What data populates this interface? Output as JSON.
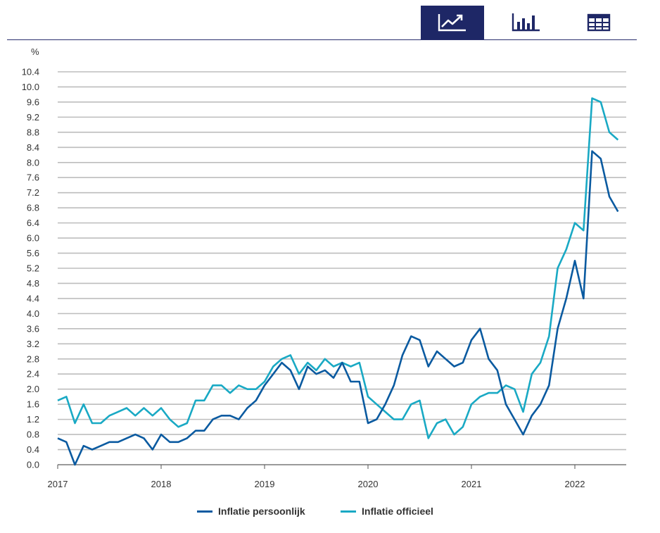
{
  "toolbar": {
    "buttons": [
      {
        "icon": "line-chart-icon",
        "active": true
      },
      {
        "icon": "bar-chart-icon",
        "active": false
      },
      {
        "icon": "table-icon",
        "active": false
      }
    ]
  },
  "colors": {
    "persoonlijk": "#0a5aa0",
    "officieel": "#19a9c4",
    "grid": "#bdbdbd",
    "toolbar_active": "#1e2766"
  },
  "chart_data": {
    "type": "line",
    "ylabel": "%",
    "xlabel": "",
    "ylim": [
      0,
      10.4
    ],
    "ytick_step": 0.4,
    "yticks": [
      "0.0",
      "0.4",
      "0.8",
      "1.2",
      "1.6",
      "2.0",
      "2.4",
      "2.8",
      "3.2",
      "3.6",
      "4.0",
      "4.4",
      "4.8",
      "5.2",
      "5.6",
      "6.0",
      "6.4",
      "6.8",
      "7.2",
      "7.6",
      "8.0",
      "8.4",
      "8.8",
      "9.2",
      "9.6",
      "10.0",
      "10.4"
    ],
    "xticks": [
      "2017",
      "2018",
      "2019",
      "2020",
      "2021",
      "2022"
    ],
    "x_start": "2017-01",
    "x_frequency": "monthly",
    "grid": true,
    "legend_position": "bottom",
    "series": [
      {
        "name": "Inflatie persoonlijk",
        "values": [
          0.7,
          0.6,
          0.0,
          0.5,
          0.4,
          0.5,
          0.6,
          0.6,
          0.7,
          0.8,
          0.7,
          0.4,
          0.8,
          0.6,
          0.6,
          0.7,
          0.9,
          0.9,
          1.2,
          1.3,
          1.3,
          1.2,
          1.5,
          1.7,
          2.1,
          2.4,
          2.7,
          2.5,
          2.0,
          2.6,
          2.4,
          2.5,
          2.3,
          2.7,
          2.2,
          2.2,
          1.1,
          1.2,
          1.6,
          2.1,
          2.9,
          3.4,
          3.3,
          2.6,
          3.0,
          2.8,
          2.6,
          2.7,
          3.3,
          3.6,
          2.8,
          2.5,
          1.6,
          1.2,
          0.8,
          1.3,
          1.6,
          2.1,
          3.6,
          4.4,
          5.4,
          4.4,
          8.3,
          8.1,
          7.1,
          6.7
        ]
      },
      {
        "name": "Inflatie officieel",
        "values": [
          1.7,
          1.8,
          1.1,
          1.6,
          1.1,
          1.1,
          1.3,
          1.4,
          1.5,
          1.3,
          1.5,
          1.3,
          1.5,
          1.2,
          1.0,
          1.1,
          1.7,
          1.7,
          2.1,
          2.1,
          1.9,
          2.1,
          2.0,
          2.0,
          2.2,
          2.6,
          2.8,
          2.9,
          2.4,
          2.7,
          2.5,
          2.8,
          2.6,
          2.7,
          2.6,
          2.7,
          1.8,
          1.6,
          1.4,
          1.2,
          1.2,
          1.6,
          1.7,
          0.7,
          1.1,
          1.2,
          0.8,
          1.0,
          1.6,
          1.8,
          1.9,
          1.9,
          2.1,
          2.0,
          1.4,
          2.4,
          2.7,
          3.4,
          5.2,
          5.7,
          6.4,
          6.2,
          9.7,
          9.6,
          8.8,
          8.6
        ]
      }
    ]
  }
}
